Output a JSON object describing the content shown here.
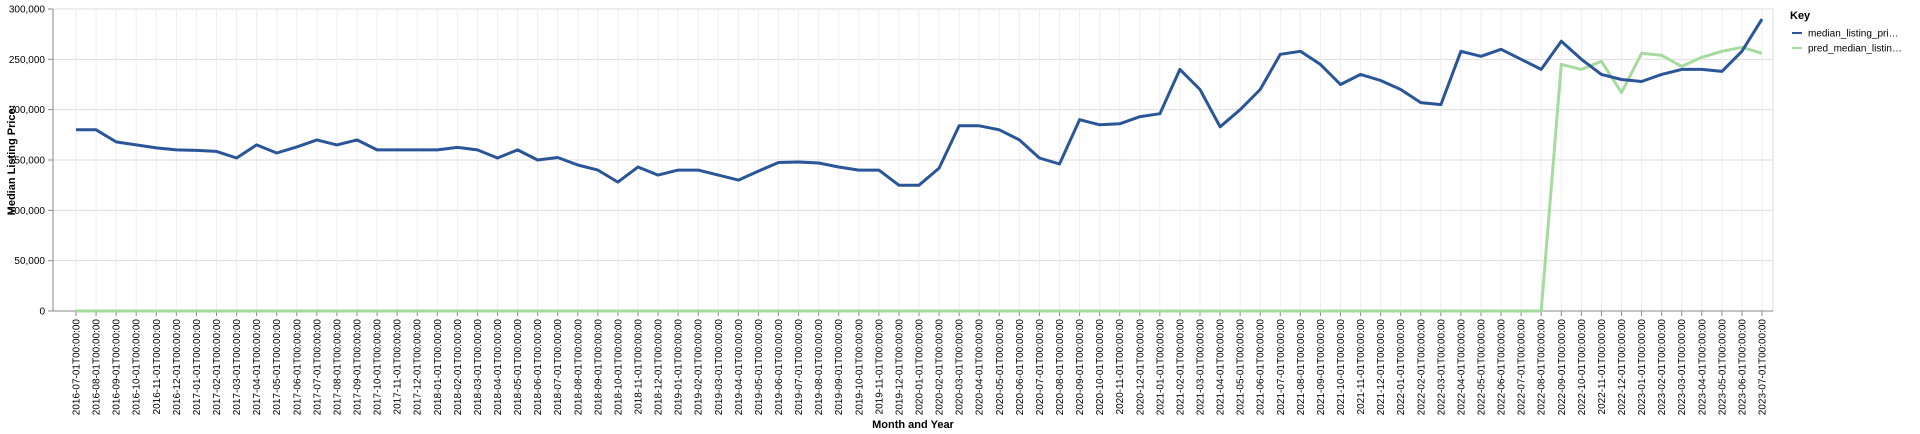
{
  "chart_data": {
    "type": "line",
    "xlabel": "Month and Year",
    "ylabel": "Median Listing Price:",
    "ylim": [
      0,
      300000
    ],
    "yticks": [
      "0",
      "50,000",
      "100,000",
      "150,000",
      "200,000",
      "250,000",
      "300,000"
    ],
    "grid": true,
    "legend_title": "Key",
    "legend_position": "top-right",
    "x": [
      "2016-07-01T00:00:00",
      "2016-08-01T00:00:00",
      "2016-09-01T00:00:00",
      "2016-10-01T00:00:00",
      "2016-11-01T00:00:00",
      "2016-12-01T00:00:00",
      "2017-01-01T00:00:00",
      "2017-02-01T00:00:00",
      "2017-03-01T00:00:00",
      "2017-04-01T00:00:00",
      "2017-05-01T00:00:00",
      "2017-06-01T00:00:00",
      "2017-07-01T00:00:00",
      "2017-08-01T00:00:00",
      "2017-09-01T00:00:00",
      "2017-10-01T00:00:00",
      "2017-11-01T00:00:00",
      "2017-12-01T00:00:00",
      "2018-01-01T00:00:00",
      "2018-02-01T00:00:00",
      "2018-03-01T00:00:00",
      "2018-04-01T00:00:00",
      "2018-05-01T00:00:00",
      "2018-06-01T00:00:00",
      "2018-07-01T00:00:00",
      "2018-08-01T00:00:00",
      "2018-09-01T00:00:00",
      "2018-10-01T00:00:00",
      "2018-11-01T00:00:00",
      "2018-12-01T00:00:00",
      "2019-01-01T00:00:00",
      "2019-02-01T00:00:00",
      "2019-03-01T00:00:00",
      "2019-04-01T00:00:00",
      "2019-05-01T00:00:00",
      "2019-06-01T00:00:00",
      "2019-07-01T00:00:00",
      "2019-08-01T00:00:00",
      "2019-09-01T00:00:00",
      "2019-10-01T00:00:00",
      "2019-11-01T00:00:00",
      "2019-12-01T00:00:00",
      "2020-01-01T00:00:00",
      "2020-02-01T00:00:00",
      "2020-03-01T00:00:00",
      "2020-04-01T00:00:00",
      "2020-05-01T00:00:00",
      "2020-06-01T00:00:00",
      "2020-07-01T00:00:00",
      "2020-08-01T00:00:00",
      "2020-09-01T00:00:00",
      "2020-10-01T00:00:00",
      "2020-11-01T00:00:00",
      "2020-12-01T00:00:00",
      "2021-01-01T00:00:00",
      "2021-02-01T00:00:00",
      "2021-03-01T00:00:00",
      "2021-04-01T00:00:00",
      "2021-05-01T00:00:00",
      "2021-06-01T00:00:00",
      "2021-07-01T00:00:00",
      "2021-08-01T00:00:00",
      "2021-09-01T00:00:00",
      "2021-10-01T00:00:00",
      "2021-11-01T00:00:00",
      "2021-12-01T00:00:00",
      "2022-01-01T00:00:00",
      "2022-02-01T00:00:00",
      "2022-03-01T00:00:00",
      "2022-04-01T00:00:00",
      "2022-05-01T00:00:00",
      "2022-06-01T00:00:00",
      "2022-07-01T00:00:00",
      "2022-08-01T00:00:00",
      "2022-09-01T00:00:00",
      "2022-10-01T00:00:00",
      "2022-11-01T00:00:00",
      "2022-12-01T00:00:00",
      "2023-01-01T00:00:00",
      "2023-02-01T00:00:00",
      "2023-03-01T00:00:00",
      "2023-04-01T00:00:00",
      "2023-05-01T00:00:00",
      "2023-06-01T00:00:00",
      "2023-07-01T00:00:00"
    ],
    "series": [
      {
        "name": "median_listing_pri…",
        "color": "#2a5599",
        "values": [
          180000,
          180000,
          168000,
          165000,
          162000,
          160000,
          159500,
          158500,
          152000,
          165000,
          157000,
          163000,
          170000,
          165000,
          170000,
          160000,
          160000,
          160000,
          160000,
          162500,
          160000,
          152000,
          160000,
          150000,
          152500,
          145000,
          140000,
          128000,
          143000,
          135000,
          140000,
          140000,
          135000,
          130000,
          139000,
          147500,
          148000,
          147000,
          143000,
          140000,
          140000,
          125000,
          125000,
          142000,
          184000,
          184000,
          180000,
          170000,
          152000,
          146000,
          190000,
          185000,
          186000,
          193000,
          196000,
          240000,
          220000,
          183000,
          200000,
          220000,
          255000,
          258000,
          245000,
          225000,
          235000,
          229000,
          220000,
          207000,
          205000,
          258000,
          253000,
          260000,
          250000,
          240000,
          268000,
          250000,
          235000,
          230000,
          228000,
          235000,
          240000,
          240000,
          238000,
          258000,
          290000
        ]
      },
      {
        "name": "pred_median_listin…",
        "color": "#a6dba0",
        "values": [
          0,
          0,
          0,
          0,
          0,
          0,
          0,
          0,
          0,
          0,
          0,
          0,
          0,
          0,
          0,
          0,
          0,
          0,
          0,
          0,
          0,
          0,
          0,
          0,
          0,
          0,
          0,
          0,
          0,
          0,
          0,
          0,
          0,
          0,
          0,
          0,
          0,
          0,
          0,
          0,
          0,
          0,
          0,
          0,
          0,
          0,
          0,
          0,
          0,
          0,
          0,
          0,
          0,
          0,
          0,
          0,
          0,
          0,
          0,
          0,
          0,
          0,
          0,
          0,
          0,
          0,
          0,
          0,
          0,
          0,
          0,
          0,
          0,
          0,
          245000,
          240000,
          248000,
          217000,
          256000,
          254000,
          243000,
          252000,
          258000,
          262000,
          256000
        ]
      }
    ]
  }
}
